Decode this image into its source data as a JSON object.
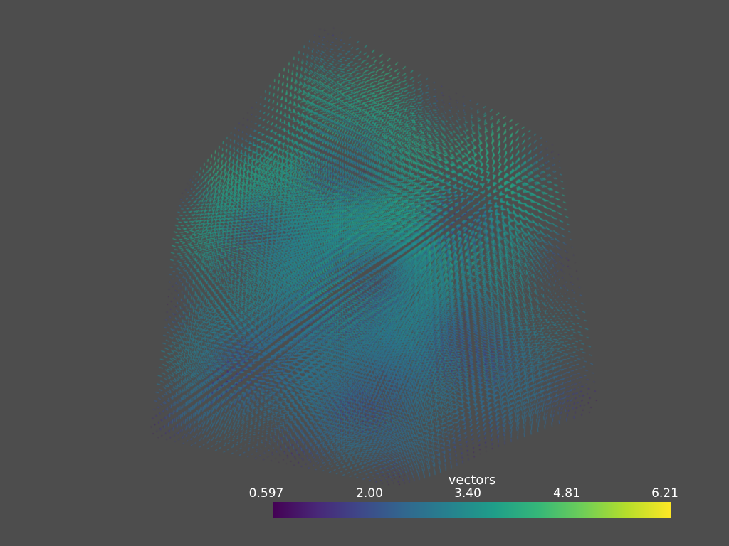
{
  "scene": {
    "background": "#4d4d4d",
    "object": "vector-glyph-cube",
    "colormap": "viridis"
  },
  "scalar_bar": {
    "title": "vectors",
    "ticks": [
      {
        "value": 0.597,
        "label": "0.597"
      },
      {
        "value": 2.0,
        "label": "2.00"
      },
      {
        "value": 3.4,
        "label": "3.40"
      },
      {
        "value": 4.81,
        "label": "4.81"
      },
      {
        "value": 6.21,
        "label": "6.21"
      }
    ],
    "range": [
      0.597,
      6.21
    ],
    "colors": [
      "#440154",
      "#482878",
      "#3e4989",
      "#31688e",
      "#26828e",
      "#1f9e89",
      "#35b779",
      "#6ece58",
      "#b5de2b",
      "#fde725"
    ]
  }
}
